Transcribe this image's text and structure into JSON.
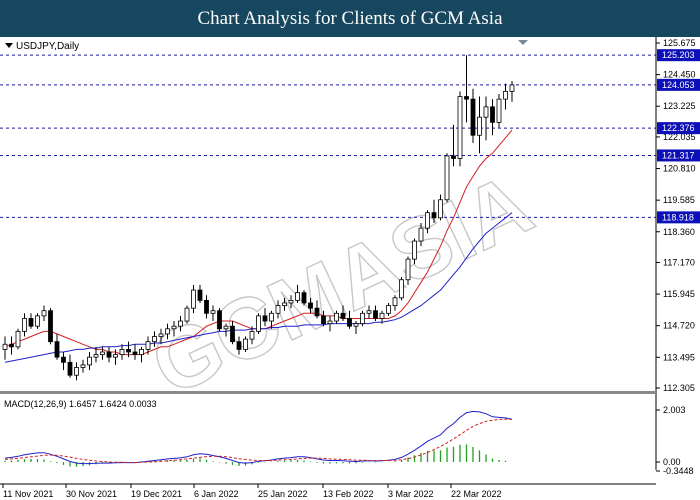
{
  "header": {
    "title": "Chart Analysis for Clients of GCM Asia"
  },
  "chart_data": {
    "type": "candlestick",
    "symbol_label": "USDJPY,Daily",
    "watermark": "GCMASIA",
    "x_labels": [
      "11 Nov 2021",
      "30 Nov 2021",
      "19 Dec 2021",
      "6 Jan 2022",
      "25 Jan 2022",
      "13 Feb 2022",
      "3 Mar 2022",
      "22 Mar 2022"
    ],
    "price_axis": {
      "ylim": [
        112.305,
        125.675
      ],
      "ticks": [
        "125.675",
        "124.450",
        "123.225",
        "122.035",
        "120.810",
        "119.585",
        "118.360",
        "117.170",
        "115.945",
        "114.720",
        "113.495",
        "112.305"
      ]
    },
    "levels": [
      {
        "value": 125.203,
        "label": "125.203",
        "style": "box"
      },
      {
        "value": 124.053,
        "label": "124.053",
        "style": "box"
      },
      {
        "value": 122.376,
        "label": "122.376",
        "style": "box"
      },
      {
        "value": 121.317,
        "label": "121.317",
        "style": "box"
      },
      {
        "value": 118.918,
        "label": "118.918",
        "style": "box"
      }
    ],
    "candles": [
      [
        113.8,
        114.3,
        113.4,
        114.0
      ],
      [
        114.0,
        114.3,
        113.6,
        113.9
      ],
      [
        113.9,
        114.6,
        113.8,
        114.5
      ],
      [
        114.5,
        115.2,
        114.3,
        115.0
      ],
      [
        115.0,
        115.2,
        114.6,
        114.7
      ],
      [
        114.7,
        115.2,
        114.6,
        115.1
      ],
      [
        115.1,
        115.5,
        114.9,
        115.3
      ],
      [
        115.3,
        115.4,
        114.0,
        114.1
      ],
      [
        114.1,
        114.4,
        113.4,
        113.5
      ],
      [
        113.5,
        113.7,
        113.0,
        113.3
      ],
      [
        113.3,
        113.6,
        112.7,
        112.8
      ],
      [
        112.8,
        113.3,
        112.6,
        113.1
      ],
      [
        113.1,
        113.4,
        112.9,
        113.2
      ],
      [
        113.2,
        113.7,
        113.0,
        113.5
      ],
      [
        113.5,
        113.9,
        113.3,
        113.6
      ],
      [
        113.6,
        113.9,
        113.4,
        113.7
      ],
      [
        113.7,
        113.9,
        113.3,
        113.5
      ],
      [
        113.5,
        113.8,
        113.2,
        113.6
      ],
      [
        113.6,
        114.0,
        113.4,
        113.8
      ],
      [
        113.8,
        114.1,
        113.5,
        113.7
      ],
      [
        113.7,
        114.0,
        113.4,
        113.6
      ],
      [
        113.6,
        113.9,
        113.3,
        113.8
      ],
      [
        113.8,
        114.3,
        113.6,
        114.1
      ],
      [
        114.1,
        114.5,
        113.9,
        114.3
      ],
      [
        114.3,
        114.6,
        114.0,
        114.4
      ],
      [
        114.4,
        114.8,
        114.2,
        114.6
      ],
      [
        114.6,
        114.9,
        114.3,
        114.7
      ],
      [
        114.7,
        115.1,
        114.5,
        114.9
      ],
      [
        114.9,
        115.5,
        114.8,
        115.4
      ],
      [
        115.4,
        116.3,
        115.2,
        116.1
      ],
      [
        116.1,
        116.3,
        115.6,
        115.7
      ],
      [
        115.7,
        115.9,
        115.0,
        115.2
      ],
      [
        115.2,
        115.5,
        114.9,
        115.3
      ],
      [
        115.3,
        115.4,
        114.5,
        114.6
      ],
      [
        114.6,
        114.8,
        114.3,
        114.7
      ],
      [
        114.7,
        114.9,
        114.0,
        114.1
      ],
      [
        114.1,
        114.3,
        113.6,
        113.8
      ],
      [
        113.8,
        114.3,
        113.7,
        114.2
      ],
      [
        114.2,
        114.7,
        114.0,
        114.5
      ],
      [
        114.5,
        115.2,
        114.4,
        115.1
      ],
      [
        115.1,
        115.4,
        114.7,
        114.9
      ],
      [
        114.9,
        115.3,
        114.6,
        115.2
      ],
      [
        115.2,
        115.7,
        115.0,
        115.5
      ],
      [
        115.5,
        115.8,
        115.3,
        115.6
      ],
      [
        115.6,
        115.9,
        115.4,
        115.7
      ],
      [
        115.7,
        116.3,
        115.6,
        116.0
      ],
      [
        116.0,
        116.1,
        115.5,
        115.6
      ],
      [
        115.6,
        115.8,
        115.2,
        115.4
      ],
      [
        115.4,
        115.7,
        115.0,
        115.1
      ],
      [
        115.1,
        115.3,
        114.7,
        114.8
      ],
      [
        114.8,
        115.1,
        114.5,
        114.9
      ],
      [
        114.9,
        115.3,
        114.8,
        115.2
      ],
      [
        115.2,
        115.5,
        114.9,
        115.0
      ],
      [
        115.0,
        115.3,
        114.6,
        114.7
      ],
      [
        114.7,
        114.9,
        114.4,
        114.8
      ],
      [
        114.8,
        115.3,
        114.7,
        115.2
      ],
      [
        115.2,
        115.5,
        115.0,
        115.3
      ],
      [
        115.3,
        115.5,
        114.9,
        115.0
      ],
      [
        115.0,
        115.3,
        114.8,
        115.2
      ],
      [
        115.2,
        115.6,
        115.1,
        115.5
      ],
      [
        115.5,
        115.9,
        115.3,
        115.8
      ],
      [
        115.8,
        116.6,
        115.7,
        116.5
      ],
      [
        116.5,
        117.4,
        116.3,
        117.3
      ],
      [
        117.3,
        118.1,
        117.1,
        118.0
      ],
      [
        118.0,
        118.7,
        117.8,
        118.5
      ],
      [
        118.5,
        119.2,
        118.3,
        119.1
      ],
      [
        119.1,
        119.6,
        118.7,
        118.9
      ],
      [
        118.9,
        119.8,
        118.8,
        119.6
      ],
      [
        119.6,
        121.4,
        119.5,
        121.3
      ],
      [
        121.3,
        122.5,
        120.9,
        121.2
      ],
      [
        121.2,
        123.8,
        120.9,
        123.6
      ],
      [
        123.6,
        125.2,
        122.6,
        123.5
      ],
      [
        123.5,
        123.9,
        121.8,
        122.1
      ],
      [
        122.1,
        123.6,
        121.4,
        122.8
      ],
      [
        122.8,
        123.6,
        121.9,
        123.2
      ],
      [
        123.2,
        123.5,
        122.1,
        122.6
      ],
      [
        122.6,
        123.7,
        122.4,
        123.5
      ],
      [
        123.5,
        124.1,
        123.1,
        123.8
      ],
      [
        123.8,
        124.2,
        123.4,
        124.05
      ]
    ],
    "series": [
      {
        "name": "",
        "color": "#d02020",
        "values": [
          113.9,
          114.0,
          114.1,
          114.2,
          114.3,
          114.4,
          114.5,
          114.5,
          114.4,
          114.3,
          114.2,
          114.1,
          114.0,
          113.9,
          113.8,
          113.8,
          113.7,
          113.7,
          113.6,
          113.6,
          113.6,
          113.6,
          113.7,
          113.8,
          113.9,
          113.9,
          114.0,
          114.1,
          114.2,
          114.3,
          114.5,
          114.7,
          114.8,
          114.9,
          114.9,
          114.9,
          114.8,
          114.7,
          114.6,
          114.6,
          114.6,
          114.7,
          114.8,
          114.9,
          115.0,
          115.1,
          115.2,
          115.2,
          115.2,
          115.1,
          115.1,
          115.1,
          115.0,
          115.0,
          115.0,
          115.0,
          115.0,
          115.0,
          115.0,
          115.0,
          115.1,
          115.3,
          115.6,
          116.0,
          116.4,
          116.8,
          117.3,
          117.8,
          118.4,
          118.9,
          119.5,
          120.1,
          120.5,
          120.9,
          121.2,
          121.4,
          121.7,
          122.0,
          122.3
        ]
      },
      {
        "name": "",
        "color": "#2020cc",
        "values": [
          113.3,
          113.35,
          113.4,
          113.45,
          113.5,
          113.55,
          113.6,
          113.65,
          113.7,
          113.7,
          113.75,
          113.8,
          113.8,
          113.85,
          113.85,
          113.9,
          113.9,
          113.9,
          113.95,
          113.95,
          114.0,
          114.0,
          114.0,
          114.05,
          114.05,
          114.1,
          114.15,
          114.2,
          114.25,
          114.3,
          114.35,
          114.4,
          114.45,
          114.5,
          114.5,
          114.55,
          114.55,
          114.55,
          114.6,
          114.6,
          114.6,
          114.65,
          114.65,
          114.7,
          114.7,
          114.7,
          114.75,
          114.75,
          114.75,
          114.75,
          114.8,
          114.8,
          114.8,
          114.8,
          114.8,
          114.8,
          114.8,
          114.85,
          114.85,
          114.9,
          114.95,
          115.05,
          115.2,
          115.35,
          115.5,
          115.7,
          115.9,
          116.1,
          116.4,
          116.7,
          117.0,
          117.35,
          117.7,
          118.0,
          118.3,
          118.5,
          118.7,
          118.9,
          119.1
        ]
      }
    ],
    "macd": {
      "label": "MACD(12,26,9) 1.6457 1.6424 0.0033",
      "ylim": [
        -0.3448,
        2.003
      ],
      "ticks": [
        "2.003",
        "0.00",
        "-0.3448"
      ],
      "macd_color": "#2020cc",
      "signal_color": "#d02020",
      "hist_color": "#20a020",
      "macd": [
        0.15,
        0.18,
        0.22,
        0.28,
        0.32,
        0.35,
        0.36,
        0.3,
        0.22,
        0.12,
        0.02,
        -0.04,
        -0.06,
        -0.06,
        -0.05,
        -0.04,
        -0.04,
        -0.03,
        -0.02,
        -0.02,
        -0.02,
        0.0,
        0.03,
        0.06,
        0.09,
        0.12,
        0.14,
        0.16,
        0.2,
        0.28,
        0.32,
        0.3,
        0.25,
        0.2,
        0.14,
        0.06,
        -0.02,
        -0.04,
        -0.02,
        0.03,
        0.05,
        0.08,
        0.12,
        0.15,
        0.17,
        0.2,
        0.2,
        0.17,
        0.12,
        0.08,
        0.06,
        0.06,
        0.05,
        0.03,
        0.02,
        0.04,
        0.05,
        0.04,
        0.05,
        0.07,
        0.1,
        0.18,
        0.3,
        0.45,
        0.62,
        0.8,
        0.92,
        1.05,
        1.3,
        1.48,
        1.72,
        1.9,
        1.95,
        1.93,
        1.86,
        1.74,
        1.72,
        1.7,
        1.65
      ],
      "signal": [
        0.1,
        0.12,
        0.14,
        0.17,
        0.2,
        0.23,
        0.26,
        0.27,
        0.26,
        0.23,
        0.19,
        0.14,
        0.1,
        0.07,
        0.04,
        0.02,
        0.0,
        -0.01,
        -0.01,
        -0.02,
        -0.02,
        -0.01,
        0.0,
        0.01,
        0.03,
        0.05,
        0.07,
        0.09,
        0.12,
        0.15,
        0.18,
        0.21,
        0.22,
        0.22,
        0.2,
        0.17,
        0.13,
        0.1,
        0.07,
        0.06,
        0.06,
        0.06,
        0.07,
        0.09,
        0.1,
        0.12,
        0.14,
        0.15,
        0.15,
        0.14,
        0.12,
        0.11,
        0.1,
        0.09,
        0.07,
        0.07,
        0.06,
        0.06,
        0.06,
        0.06,
        0.07,
        0.09,
        0.13,
        0.19,
        0.27,
        0.37,
        0.48,
        0.6,
        0.74,
        0.89,
        1.05,
        1.22,
        1.37,
        1.48,
        1.57,
        1.61,
        1.64,
        1.65,
        1.6424
      ]
    }
  }
}
